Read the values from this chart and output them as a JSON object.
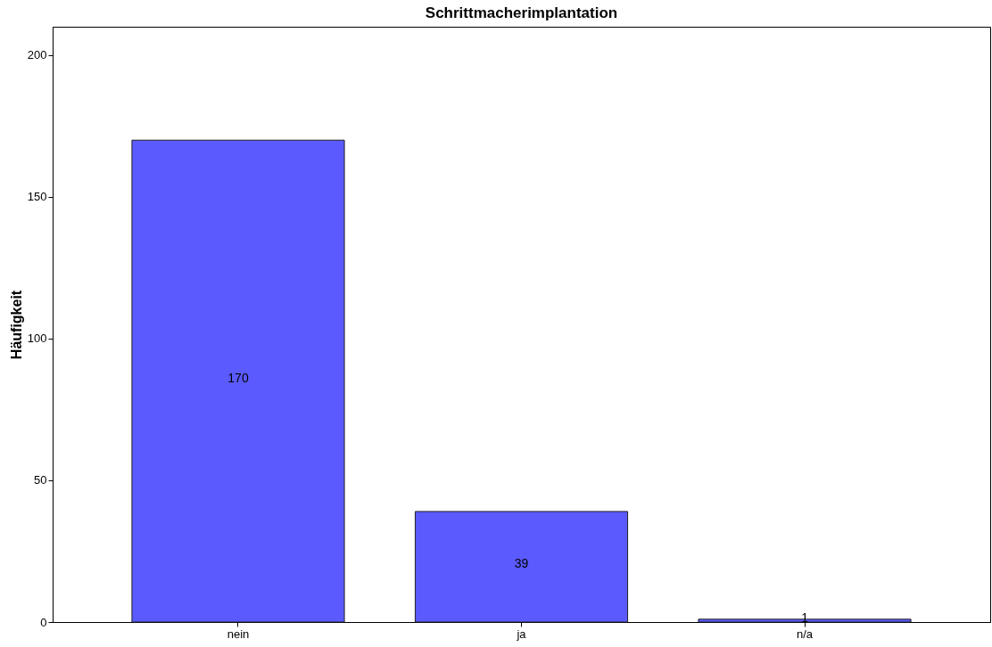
{
  "chart_data": {
    "type": "bar",
    "title": "Schrittmacherimplantation",
    "ylabel": "Häufigkeit",
    "categories": [
      "nein",
      "ja",
      "n/a"
    ],
    "values": [
      170,
      39,
      1
    ],
    "color": "#5a5aff",
    "ylim": [
      0,
      210
    ],
    "yticks": [
      0,
      50,
      100,
      150,
      200
    ],
    "grid": false,
    "data_labels": true
  }
}
